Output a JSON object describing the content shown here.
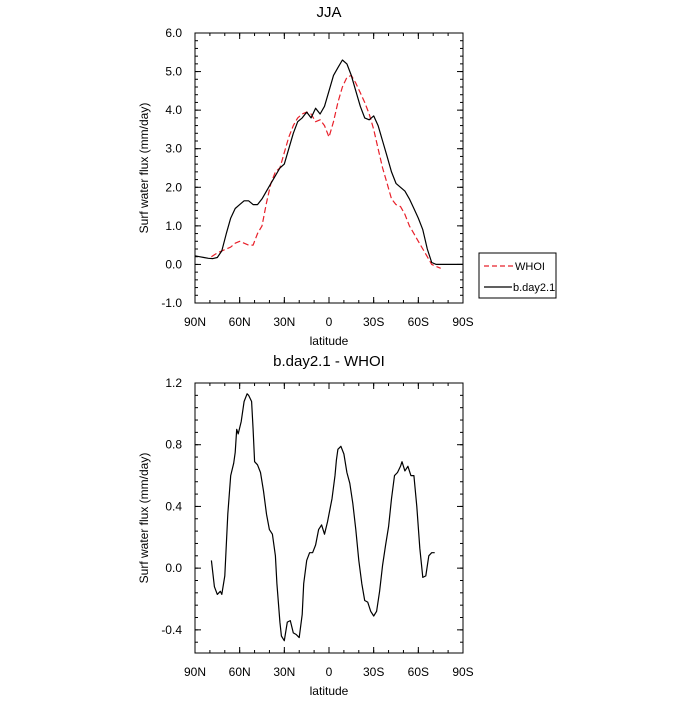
{
  "chart_data": [
    {
      "type": "line",
      "title": "JJA",
      "xlabel": "latitude",
      "ylabel": "Surf water flux (mm/day)",
      "xlim": [
        90,
        -90
      ],
      "ylim": [
        -1.0,
        6.0
      ],
      "x_ticks": [
        {
          "value": 90,
          "label": "90N"
        },
        {
          "value": 60,
          "label": "60N"
        },
        {
          "value": 30,
          "label": "30N"
        },
        {
          "value": 0,
          "label": "0"
        },
        {
          "value": -30,
          "label": "30S"
        },
        {
          "value": -60,
          "label": "60S"
        },
        {
          "value": -90,
          "label": "90S"
        }
      ],
      "y_ticks": [
        {
          "value": -1.0,
          "label": "-1.0"
        },
        {
          "value": 0.0,
          "label": "0.0"
        },
        {
          "value": 1.0,
          "label": "1.0"
        },
        {
          "value": 2.0,
          "label": "2.0"
        },
        {
          "value": 3.0,
          "label": "3.0"
        },
        {
          "value": 4.0,
          "label": "4.0"
        },
        {
          "value": 5.0,
          "label": "5.0"
        },
        {
          "value": 6.0,
          "label": "6.0"
        }
      ],
      "legend": "outside-right",
      "series": [
        {
          "name": "WHOI",
          "color": "#e8202a",
          "dash": "dashed",
          "x": [
            79,
            75,
            72,
            69,
            66,
            63,
            60,
            57,
            54,
            51,
            48,
            45,
            42,
            39,
            36,
            33,
            30,
            27,
            24,
            21,
            18,
            15,
            12,
            9,
            6,
            3,
            0,
            -3,
            -6,
            -9,
            -12,
            -15,
            -18,
            -21,
            -24,
            -27,
            -30,
            -33,
            -36,
            -39,
            -42,
            -45,
            -48,
            -51,
            -54,
            -57,
            -60,
            -63,
            -66,
            -69,
            -72,
            -75
          ],
          "y": [
            0.2,
            0.3,
            0.35,
            0.4,
            0.45,
            0.55,
            0.6,
            0.55,
            0.5,
            0.5,
            0.8,
            1.0,
            1.6,
            2.1,
            2.4,
            2.5,
            2.9,
            3.3,
            3.6,
            3.8,
            3.9,
            3.95,
            3.9,
            3.7,
            3.75,
            3.6,
            3.3,
            3.7,
            4.2,
            4.6,
            4.85,
            4.9,
            4.7,
            4.45,
            4.2,
            3.9,
            3.5,
            3.0,
            2.5,
            2.1,
            1.7,
            1.55,
            1.5,
            1.3,
            1.0,
            0.8,
            0.6,
            0.4,
            0.2,
            0.0,
            -0.05,
            -0.1
          ]
        },
        {
          "name": "b.day2.1",
          "color": "#000000",
          "dash": "solid",
          "x": [
            90,
            87,
            84,
            81,
            78,
            75,
            72,
            69,
            66,
            63,
            60,
            57,
            54,
            51,
            48,
            45,
            42,
            39,
            36,
            33,
            30,
            27,
            24,
            21,
            18,
            15,
            12,
            9,
            6,
            3,
            0,
            -3,
            -6,
            -9,
            -12,
            -15,
            -18,
            -21,
            -24,
            -27,
            -30,
            -33,
            -36,
            -39,
            -42,
            -45,
            -48,
            -51,
            -54,
            -57,
            -60,
            -63,
            -66,
            -69,
            -72,
            -75,
            -78,
            -81,
            -84,
            -87,
            -90
          ],
          "y": [
            0.22,
            0.2,
            0.18,
            0.16,
            0.15,
            0.18,
            0.35,
            0.8,
            1.2,
            1.45,
            1.55,
            1.65,
            1.65,
            1.55,
            1.55,
            1.7,
            1.9,
            2.1,
            2.3,
            2.5,
            2.6,
            3.0,
            3.4,
            3.7,
            3.8,
            3.95,
            3.8,
            4.05,
            3.9,
            4.1,
            4.5,
            4.9,
            5.1,
            5.3,
            5.2,
            4.9,
            4.5,
            4.1,
            3.8,
            3.75,
            3.85,
            3.6,
            3.2,
            2.8,
            2.4,
            2.1,
            2.0,
            1.9,
            1.7,
            1.45,
            1.2,
            0.9,
            0.4,
            0.05,
            0.0,
            0.0,
            0.0,
            0.0,
            0.0,
            0.0,
            0.0
          ]
        }
      ]
    },
    {
      "type": "line",
      "title": "b.day2.1 - WHOI",
      "xlabel": "latitude",
      "ylabel": "Surf water flux (mm/day)",
      "xlim": [
        90,
        -90
      ],
      "ylim": [
        -0.55,
        1.2
      ],
      "x_ticks": [
        {
          "value": 90,
          "label": "90N"
        },
        {
          "value": 60,
          "label": "60N"
        },
        {
          "value": 30,
          "label": "30N"
        },
        {
          "value": 0,
          "label": "0"
        },
        {
          "value": -30,
          "label": "30S"
        },
        {
          "value": -60,
          "label": "60S"
        },
        {
          "value": -90,
          "label": "90S"
        }
      ],
      "y_ticks": [
        {
          "value": -0.4,
          "label": "-0.4"
        },
        {
          "value": 0.0,
          "label": "0.0"
        },
        {
          "value": 0.4,
          "label": "0.4"
        },
        {
          "value": 0.8,
          "label": "0.8"
        },
        {
          "value": 1.2,
          "label": "1.2"
        }
      ],
      "series": [
        {
          "name": "b.day2.1 - WHOI",
          "color": "#000000",
          "dash": "solid",
          "x": [
            79,
            77,
            75,
            73,
            72,
            70,
            68,
            66,
            64,
            63,
            62,
            61,
            59,
            57,
            55,
            54,
            52,
            51,
            50,
            48,
            46,
            44,
            42,
            40,
            38,
            36,
            35,
            33,
            32,
            30,
            28,
            26,
            24,
            22,
            20,
            18,
            17,
            15,
            13,
            11,
            9,
            7,
            5,
            3,
            1,
            0,
            -2,
            -4,
            -5,
            -6,
            -8,
            -10,
            -12,
            -14,
            -16,
            -18,
            -20,
            -22,
            -24,
            -26,
            -28,
            -30,
            -32,
            -34,
            -36,
            -38,
            -40,
            -42,
            -44,
            -46,
            -48,
            -49,
            -51,
            -53,
            -55,
            -57,
            -59,
            -61,
            -63,
            -65,
            -67,
            -69,
            -71
          ],
          "y": [
            0.05,
            -0.12,
            -0.17,
            -0.15,
            -0.17,
            -0.05,
            0.35,
            0.6,
            0.68,
            0.75,
            0.9,
            0.87,
            0.95,
            1.08,
            1.13,
            1.12,
            1.08,
            0.9,
            0.69,
            0.67,
            0.62,
            0.5,
            0.35,
            0.25,
            0.22,
            0.08,
            -0.1,
            -0.35,
            -0.44,
            -0.47,
            -0.35,
            -0.34,
            -0.42,
            -0.43,
            -0.45,
            -0.3,
            -0.1,
            0.05,
            0.1,
            0.1,
            0.15,
            0.25,
            0.28,
            0.22,
            0.3,
            0.35,
            0.45,
            0.6,
            0.7,
            0.77,
            0.79,
            0.74,
            0.62,
            0.55,
            0.42,
            0.25,
            0.05,
            -0.1,
            -0.21,
            -0.22,
            -0.28,
            -0.31,
            -0.28,
            -0.15,
            0.02,
            0.15,
            0.27,
            0.45,
            0.6,
            0.62,
            0.66,
            0.69,
            0.63,
            0.66,
            0.6,
            0.6,
            0.4,
            0.13,
            -0.06,
            -0.05,
            0.08,
            0.1,
            0.1
          ]
        }
      ]
    }
  ]
}
